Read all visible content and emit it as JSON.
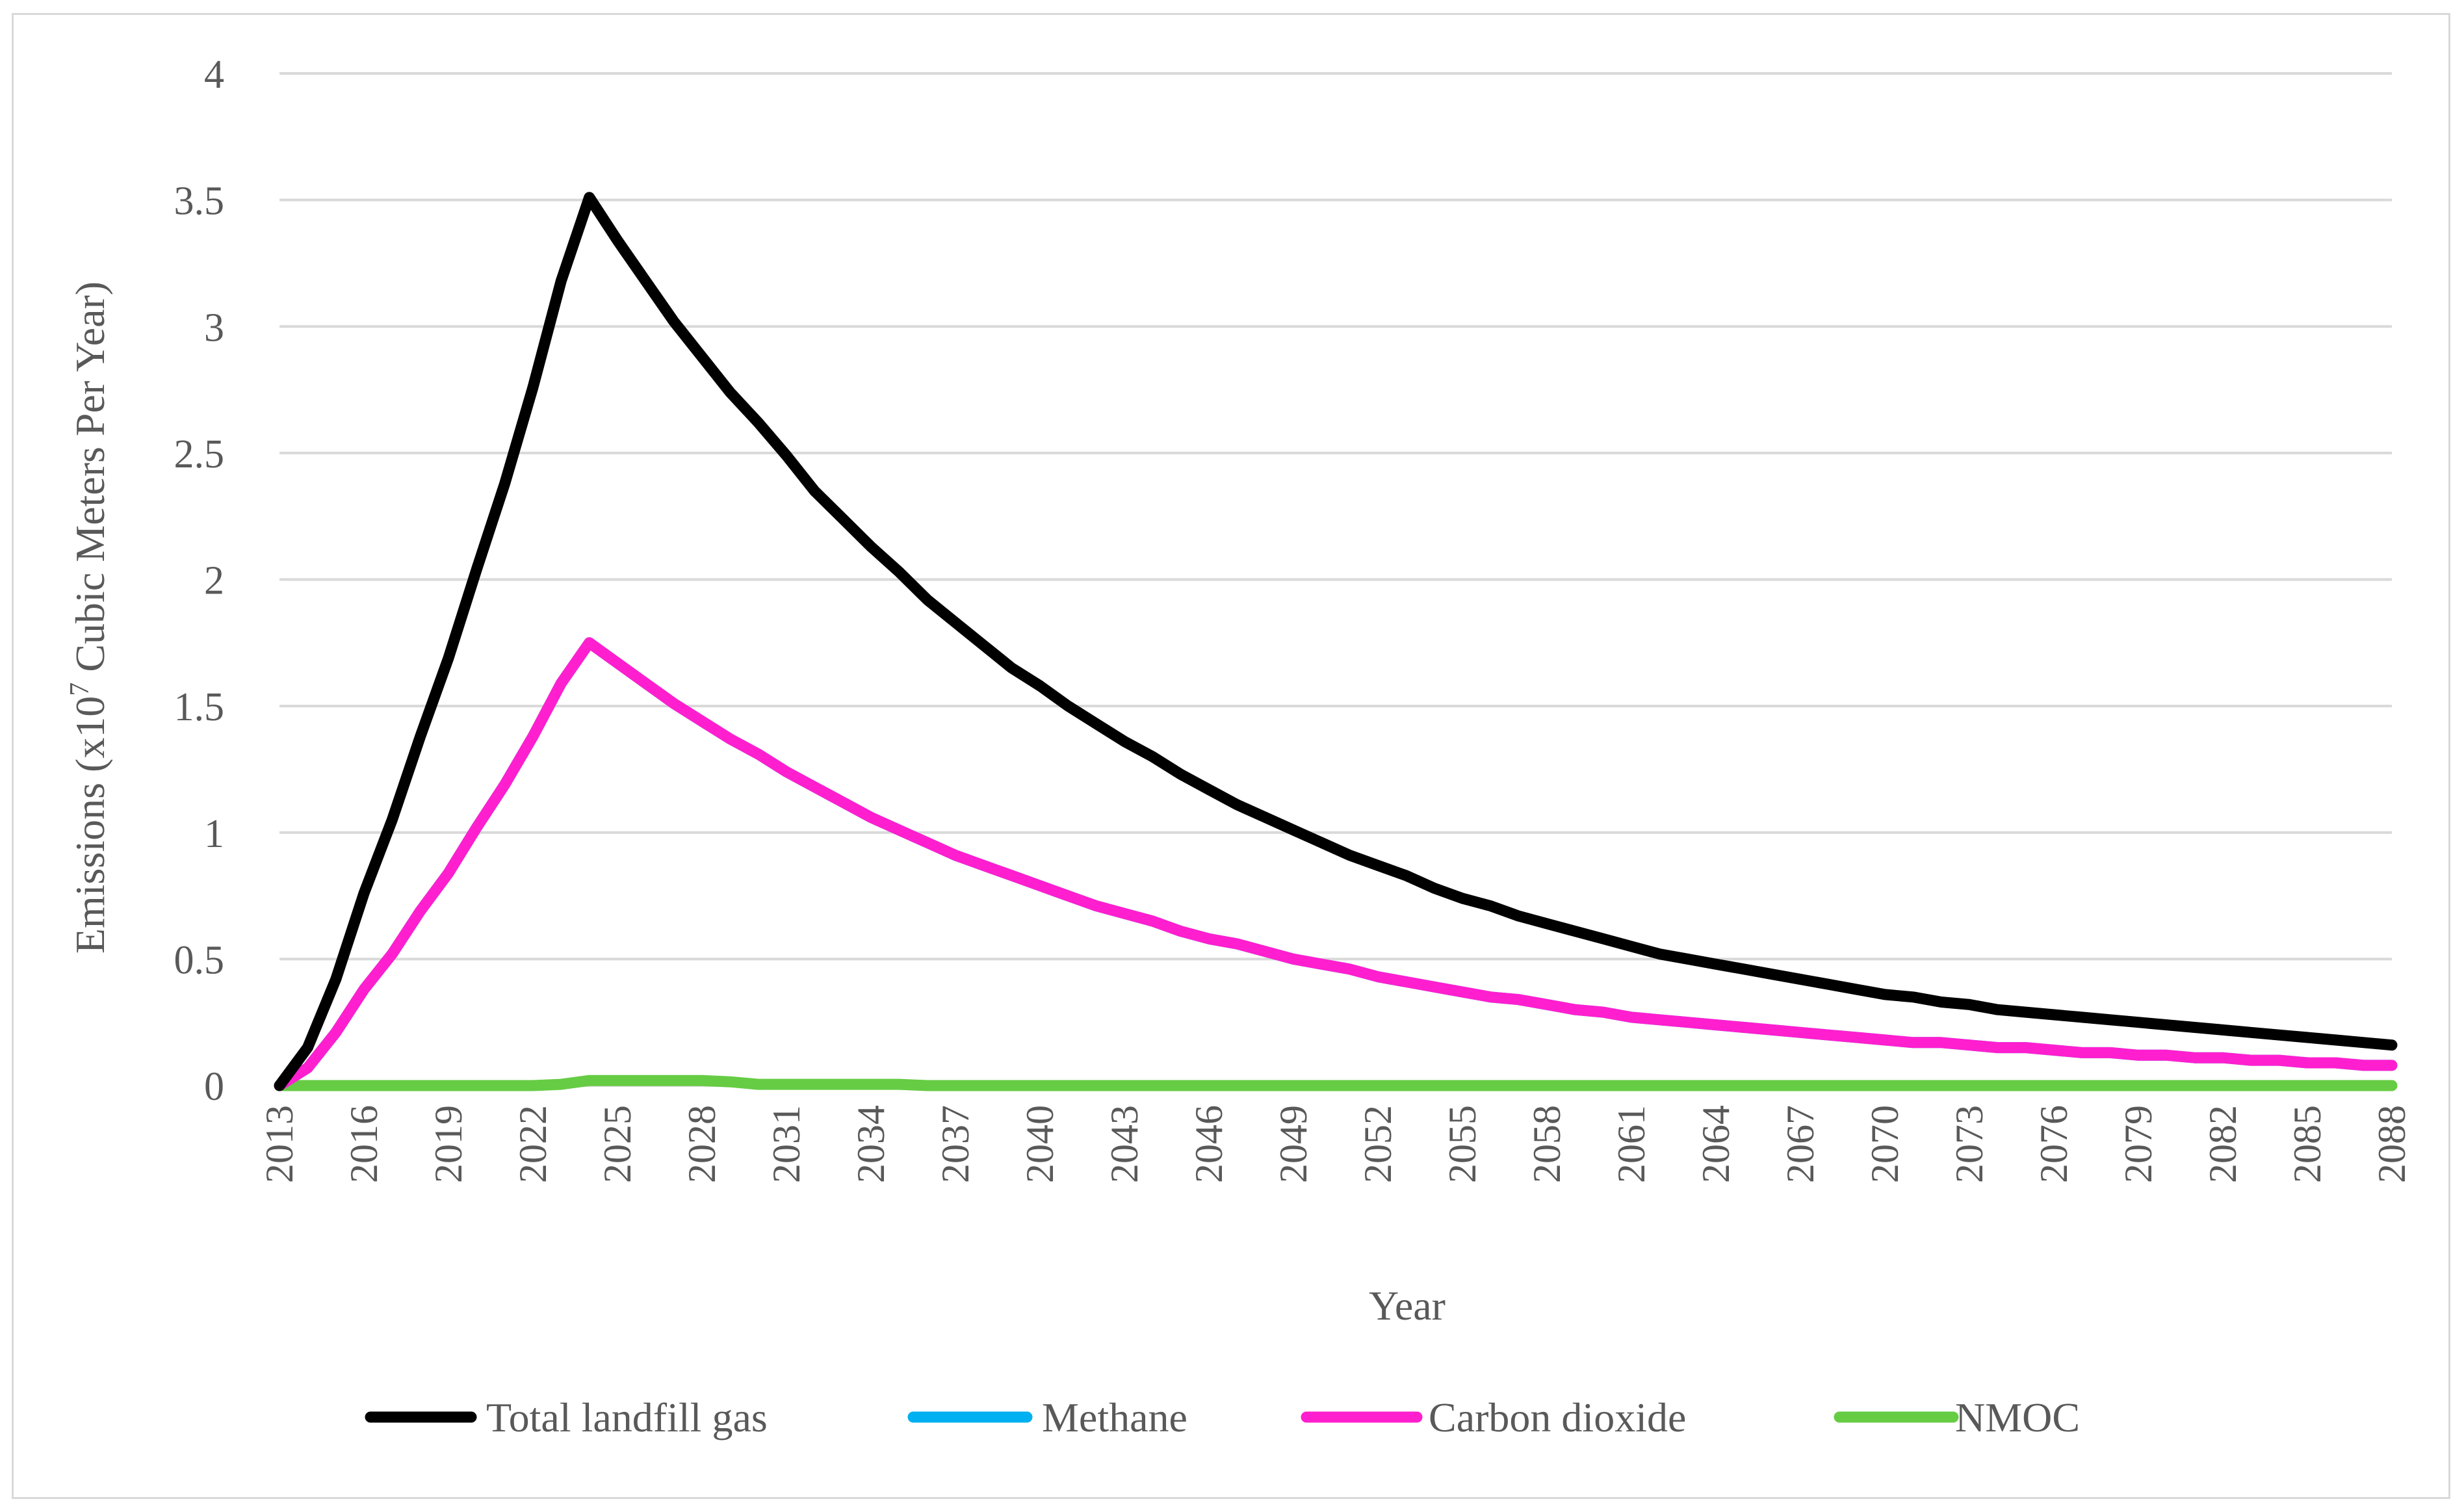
{
  "chart_data": {
    "type": "line",
    "title": "",
    "xlabel": "Year",
    "ylabel_prefix": "Emissions (x10",
    "ylabel_exp": "7",
    "ylabel_suffix": " Cubic Meters Per Year)",
    "ylim": [
      0,
      4
    ],
    "yticks": [
      "0",
      "0.5",
      "1",
      "1.5",
      "2",
      "2.5",
      "3",
      "3.5",
      "4"
    ],
    "xlim": [
      2013,
      2088
    ],
    "xticks": [
      "2013",
      "2016",
      "2019",
      "2022",
      "2025",
      "2028",
      "2031",
      "2034",
      "2037",
      "2040",
      "2043",
      "2046",
      "2049",
      "2052",
      "2055",
      "2058",
      "2061",
      "2064",
      "2067",
      "2070",
      "2073",
      "2076",
      "2079",
      "2082",
      "2085",
      "2088"
    ],
    "grid": true,
    "legend_position": "bottom",
    "x_start": 2013,
    "series": [
      {
        "name": "Total landfill gas",
        "color": "#000000",
        "values": [
          0.0,
          0.15,
          0.42,
          0.76,
          1.05,
          1.38,
          1.69,
          2.04,
          2.38,
          2.76,
          3.18,
          3.51,
          3.34,
          3.18,
          3.02,
          2.88,
          2.74,
          2.62,
          2.49,
          2.35,
          2.24,
          2.13,
          2.03,
          1.92,
          1.83,
          1.74,
          1.65,
          1.58,
          1.5,
          1.43,
          1.36,
          1.3,
          1.23,
          1.17,
          1.11,
          1.06,
          1.01,
          0.96,
          0.91,
          0.87,
          0.83,
          0.78,
          0.74,
          0.71,
          0.67,
          0.64,
          0.61,
          0.58,
          0.55,
          0.52,
          0.5,
          0.48,
          0.46,
          0.44,
          0.42,
          0.4,
          0.38,
          0.36,
          0.35,
          0.33,
          0.32,
          0.3,
          0.29,
          0.28,
          0.27,
          0.26,
          0.25,
          0.24,
          0.23,
          0.22,
          0.21,
          0.2,
          0.19,
          0.18,
          0.17,
          0.16
        ]
      },
      {
        "name": "Methane",
        "color": "#00b0f0",
        "values": [
          0.0,
          0.07,
          0.21,
          0.38,
          0.52,
          0.69,
          0.84,
          1.02,
          1.19,
          1.38,
          1.59,
          1.75,
          1.67,
          1.59,
          1.51,
          1.44,
          1.37,
          1.31,
          1.24,
          1.18,
          1.12,
          1.06,
          1.01,
          0.96,
          0.91,
          0.87,
          0.83,
          0.79,
          0.75,
          0.71,
          0.68,
          0.65,
          0.61,
          0.58,
          0.56,
          0.53,
          0.5,
          0.48,
          0.46,
          0.43,
          0.41,
          0.39,
          0.37,
          0.35,
          0.34,
          0.32,
          0.3,
          0.29,
          0.27,
          0.26,
          0.25,
          0.24,
          0.23,
          0.22,
          0.21,
          0.2,
          0.19,
          0.18,
          0.17,
          0.17,
          0.16,
          0.15,
          0.15,
          0.14,
          0.13,
          0.13,
          0.12,
          0.12,
          0.11,
          0.11,
          0.1,
          0.1,
          0.09,
          0.09,
          0.08,
          0.08
        ]
      },
      {
        "name": "Carbon dioxide",
        "color": "#ff1fcf",
        "values": [
          0.0,
          0.07,
          0.21,
          0.38,
          0.52,
          0.69,
          0.84,
          1.02,
          1.19,
          1.38,
          1.59,
          1.75,
          1.67,
          1.59,
          1.51,
          1.44,
          1.37,
          1.31,
          1.24,
          1.18,
          1.12,
          1.06,
          1.01,
          0.96,
          0.91,
          0.87,
          0.83,
          0.79,
          0.75,
          0.71,
          0.68,
          0.65,
          0.61,
          0.58,
          0.56,
          0.53,
          0.5,
          0.48,
          0.46,
          0.43,
          0.41,
          0.39,
          0.37,
          0.35,
          0.34,
          0.32,
          0.3,
          0.29,
          0.27,
          0.26,
          0.25,
          0.24,
          0.23,
          0.22,
          0.21,
          0.2,
          0.19,
          0.18,
          0.17,
          0.17,
          0.16,
          0.15,
          0.15,
          0.14,
          0.13,
          0.13,
          0.12,
          0.12,
          0.11,
          0.11,
          0.1,
          0.1,
          0.09,
          0.09,
          0.08,
          0.08
        ]
      },
      {
        "name": "NMOC",
        "color": "#66cc44",
        "values": [
          0.0,
          0.0,
          0.0,
          0.0,
          0.0,
          0.0,
          0.0,
          0.0,
          0.0,
          0.0,
          0.005,
          0.02,
          0.02,
          0.02,
          0.02,
          0.02,
          0.015,
          0.005,
          0.005,
          0.005,
          0.005,
          0.005,
          0.005,
          0.0,
          0.0,
          0.0,
          0.0,
          0.0,
          0.0,
          0.0,
          0.0,
          0.0,
          0.0,
          0.0,
          0.0,
          0.0,
          0.0,
          0.0,
          0.0,
          0.0,
          0.0,
          0.0,
          0.0,
          0.0,
          0.0,
          0.0,
          0.0,
          0.0,
          0.0,
          0.0,
          0.0,
          0.0,
          0.0,
          0.0,
          0.0,
          0.0,
          0.0,
          0.0,
          0.0,
          0.0,
          0.0,
          0.0,
          0.0,
          0.0,
          0.0,
          0.0,
          0.0,
          0.0,
          0.0,
          0.0,
          0.0,
          0.0,
          0.0,
          0.0,
          0.0,
          0.0
        ]
      }
    ]
  }
}
